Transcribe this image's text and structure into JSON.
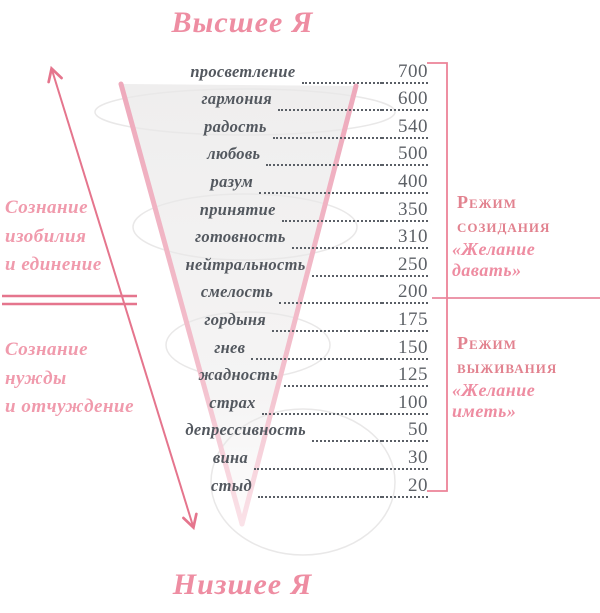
{
  "titles": {
    "top": "Высшее Я",
    "bottom": "Низшее Я"
  },
  "scale": {
    "levels": [
      {
        "label": "просветление",
        "value": "700"
      },
      {
        "label": "гармония",
        "value": "600"
      },
      {
        "label": "радость",
        "value": "540"
      },
      {
        "label": "любовь",
        "value": "500"
      },
      {
        "label": "разум",
        "value": "400"
      },
      {
        "label": "принятие",
        "value": "350"
      },
      {
        "label": "готовность",
        "value": "310"
      },
      {
        "label": "нейтральность",
        "value": "250"
      },
      {
        "label": "смелость",
        "value": "200"
      },
      {
        "label": "гордыня",
        "value": "175"
      },
      {
        "label": "гнев",
        "value": "150"
      },
      {
        "label": "жадность",
        "value": "125"
      },
      {
        "label": "страх",
        "value": "100"
      },
      {
        "label": "депрессивность",
        "value": "50"
      },
      {
        "label": "вина",
        "value": "30"
      },
      {
        "label": "стыд",
        "value": "20"
      }
    ],
    "divider_value": "200"
  },
  "left": {
    "upper": "Сознание\nизобилия\nи единение",
    "lower": "Сознание\nнужды\nи отчуждение"
  },
  "right": {
    "upper": {
      "title": "Режим\nсозидания",
      "quote": "«Желание давать»"
    },
    "lower": {
      "title": "Режим\nвыживания",
      "quote": "«Желание иметь»"
    }
  },
  "colors": {
    "accent_pink": "#e5758d",
    "funnel_edge_pink": "#efadbf",
    "title_pink": "#ee8da2",
    "text_gray": "#53585f",
    "number_gray": "#5d6167",
    "funnel_fill": "#efeeee"
  }
}
